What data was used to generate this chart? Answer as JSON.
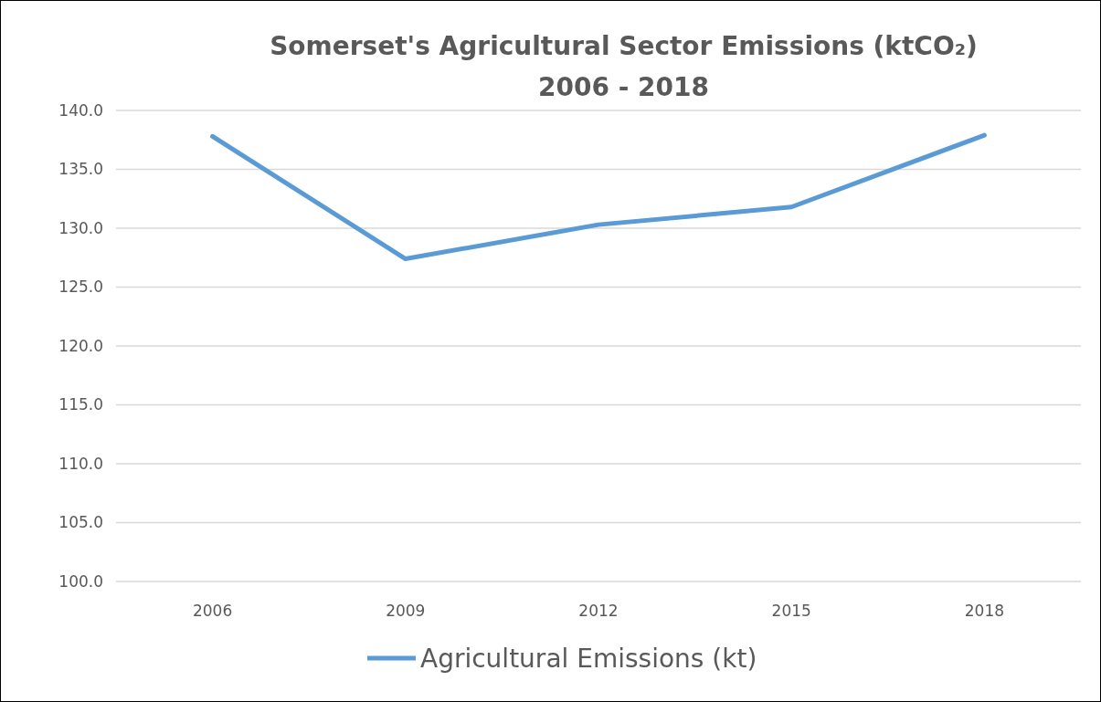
{
  "chart_data": {
    "type": "line",
    "title": "Somerset's Agricultural Sector Emissions (ktCO₂)",
    "subtitle": "2006 - 2018",
    "categories": [
      "2006",
      "2009",
      "2012",
      "2015",
      "2018"
    ],
    "series": [
      {
        "name": "Agricultural Emissions (kt)",
        "color": "#5b9bd5",
        "values": [
          137.8,
          127.4,
          130.3,
          131.8,
          137.9
        ]
      }
    ],
    "ylim": [
      100,
      140
    ],
    "yticks": [
      {
        "value": 100,
        "label": "100.0"
      },
      {
        "value": 105,
        "label": "105.0"
      },
      {
        "value": 110,
        "label": "110.0"
      },
      {
        "value": 115,
        "label": "115.0"
      },
      {
        "value": 120,
        "label": "120.0"
      },
      {
        "value": 125,
        "label": "125.0"
      },
      {
        "value": 130,
        "label": "130.0"
      },
      {
        "value": 135,
        "label": "135.0"
      },
      {
        "value": 140,
        "label": "140.0"
      }
    ],
    "grid": "y",
    "legend": "bottom",
    "marker": "none",
    "line_style": "solid"
  }
}
